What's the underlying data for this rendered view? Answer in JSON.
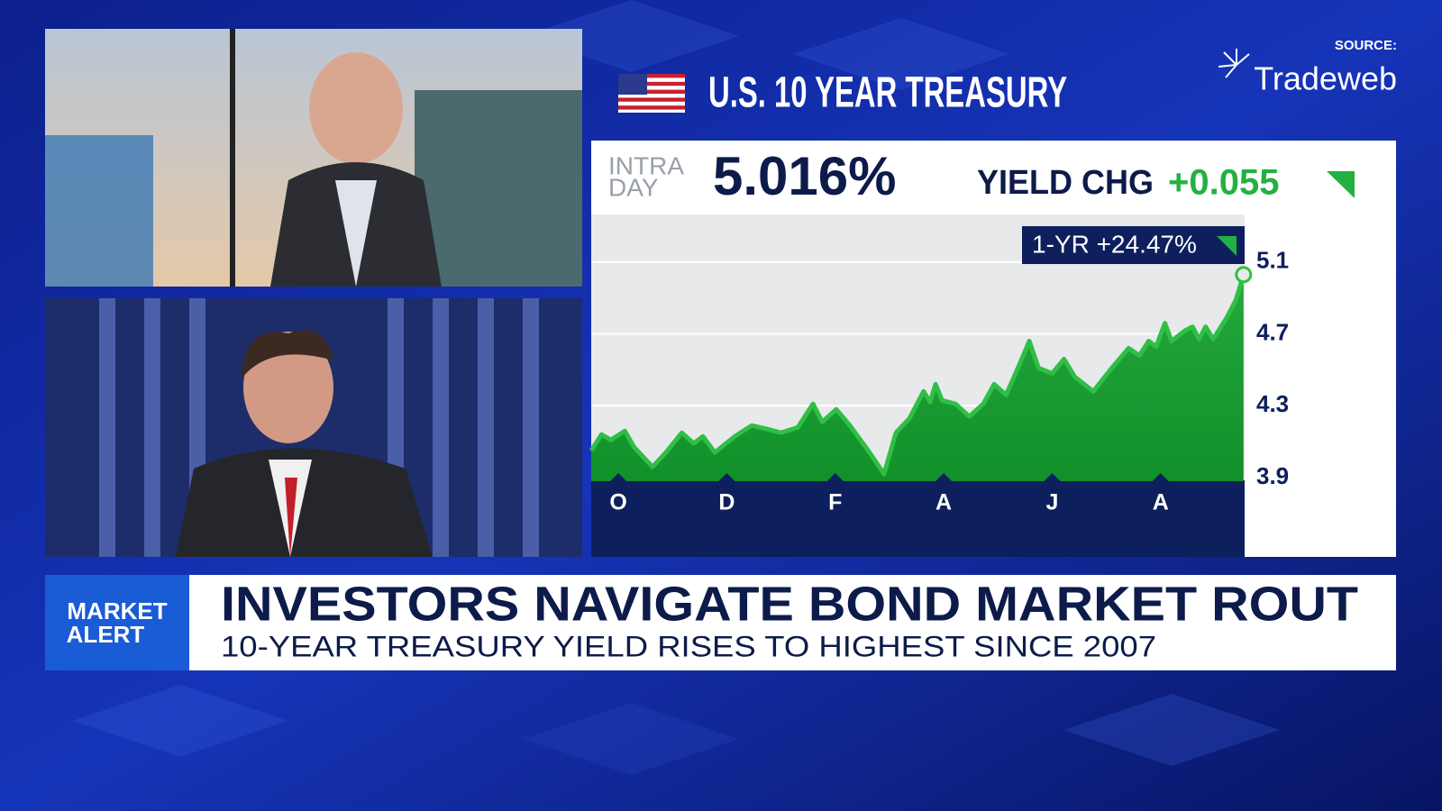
{
  "header": {
    "title": "U.S. 10 YEAR TREASURY",
    "source_label": "SOURCE:",
    "source": "Tradeweb"
  },
  "quote": {
    "intraday_label": [
      "INTRA",
      "DAY"
    ],
    "value": "5.016%",
    "change_label": "YIELD CHG",
    "change": "+0.055",
    "one_year": "1-YR +24.47%"
  },
  "banner": {
    "tag": [
      "MARKET",
      "ALERT"
    ],
    "headline": "INVESTORS NAVIGATE BOND MARKET ROUT",
    "subheadline": "10-YEAR TREASURY YIELD RISES TO HIGHEST SINCE 2007"
  },
  "chart_data": {
    "type": "area",
    "color": "#2fbf45",
    "x": [
      -0.5,
      -0.31,
      -0.14,
      0.12,
      0.29,
      0.63,
      0.88,
      1.17,
      1.39,
      1.56,
      1.78,
      2.15,
      2.46,
      2.75,
      3.0,
      3.31,
      3.59,
      3.76,
      4.02,
      4.27,
      4.61,
      4.9,
      5.12,
      5.37,
      5.63,
      5.75,
      5.85,
      5.97,
      6.22,
      6.47,
      6.73,
      6.93,
      7.15,
      7.37,
      7.58,
      7.75,
      8.0,
      8.22,
      8.42,
      8.76,
      9.1,
      9.41,
      9.61,
      9.78,
      9.92,
      10.08,
      10.2,
      10.46,
      10.59,
      10.71,
      10.83,
      10.97,
      11.22,
      11.39,
      11.53
    ],
    "values": [
      4.05,
      4.14,
      4.11,
      4.16,
      4.07,
      3.96,
      4.04,
      4.15,
      4.09,
      4.13,
      4.04,
      4.13,
      4.19,
      4.17,
      4.15,
      4.18,
      4.31,
      4.21,
      4.28,
      4.19,
      4.05,
      3.92,
      4.15,
      4.23,
      4.38,
      4.32,
      4.42,
      4.33,
      4.31,
      4.24,
      4.31,
      4.42,
      4.36,
      4.51,
      4.66,
      4.51,
      4.48,
      4.56,
      4.46,
      4.38,
      4.51,
      4.62,
      4.58,
      4.66,
      4.63,
      4.76,
      4.66,
      4.72,
      4.74,
      4.67,
      4.74,
      4.67,
      4.79,
      4.89,
      5.03
    ],
    "xlim": [
      -0.5,
      11.55
    ],
    "xticks": [
      {
        "value": 0,
        "label": "O"
      },
      {
        "value": 2,
        "label": "D"
      },
      {
        "value": 4,
        "label": "F"
      },
      {
        "value": 6,
        "label": "A"
      },
      {
        "value": 8,
        "label": "J"
      },
      {
        "value": 10,
        "label": "A"
      }
    ],
    "ylim": [
      3.88,
      5.35
    ],
    "yticks": [
      3.9,
      4.3,
      4.7,
      5.1
    ],
    "grid": true
  }
}
